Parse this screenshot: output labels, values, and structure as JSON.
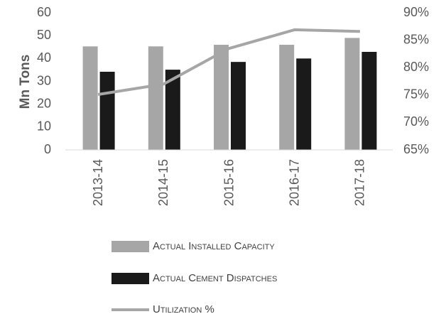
{
  "chart_data": {
    "type": "bar_line",
    "categories": [
      "2013-14",
      "2014-15",
      "2015-16",
      "2016-17",
      "2017-18"
    ],
    "y_label": "Mn Tons",
    "series": [
      {
        "name": "Actual Installed Capacity",
        "color": "#a6a6a6",
        "type": "bar",
        "values": [
          45.3,
          45.3,
          46,
          46,
          49
        ]
      },
      {
        "name": "Actual Cement Dispatches",
        "color": "#1a1a1a",
        "type": "bar",
        "values": [
          34.2,
          35.1,
          38.5,
          40,
          42.9
        ]
      },
      {
        "name": "Utilization %",
        "color": "#a6a6a6",
        "type": "line",
        "axis": "y2",
        "values": [
          75.1,
          77,
          83.5,
          86.9,
          86.6
        ]
      }
    ],
    "ylim": [
      0,
      60
    ],
    "yticks": [
      0,
      10,
      20,
      30,
      40,
      50,
      60
    ],
    "y2lim": [
      65,
      90
    ],
    "y2ticks": [
      {
        "value": 65,
        "label": "65%"
      },
      {
        "value": 70,
        "label": "70%"
      },
      {
        "value": 75,
        "label": "75%"
      },
      {
        "value": 80,
        "label": "80%"
      },
      {
        "value": 85,
        "label": "85%"
      },
      {
        "value": 90,
        "label": "90%"
      }
    ],
    "legend": "bottom"
  }
}
